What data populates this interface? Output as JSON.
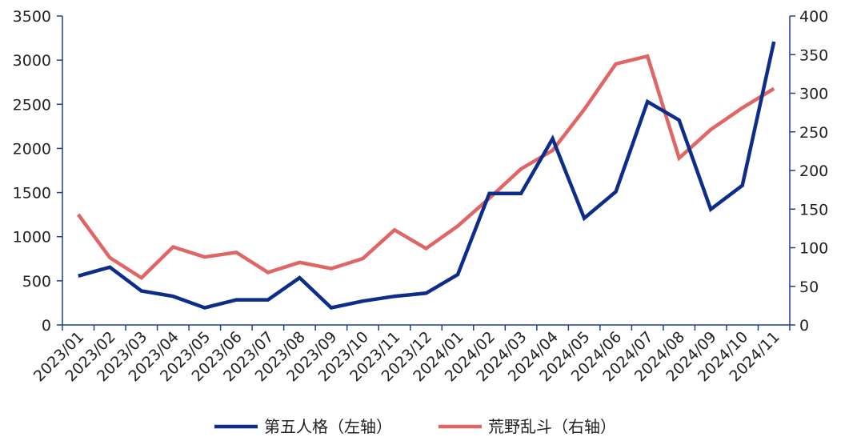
{
  "chart_data": {
    "type": "line",
    "categories": [
      "2023/01",
      "2023/02",
      "2023/03",
      "2023/04",
      "2023/05",
      "2023/06",
      "2023/07",
      "2023/08",
      "2023/09",
      "2023/10",
      "2023/11",
      "2023/12",
      "2024/01",
      "2024/02",
      "2024/03",
      "2024/04",
      "2024/05",
      "2024/06",
      "2024/07",
      "2024/08",
      "2024/09",
      "2024/10",
      "2024/11"
    ],
    "series": [
      {
        "name": "第五人格（左轴）",
        "axis": "left",
        "color": "#0d2d8a",
        "values": [
          555,
          655,
          385,
          325,
          195,
          285,
          285,
          535,
          195,
          270,
          325,
          360,
          570,
          1490,
          1490,
          2110,
          1210,
          1510,
          2530,
          2320,
          1310,
          1580,
          3210
        ]
      },
      {
        "name": "荒野乱斗（右轴）",
        "axis": "right",
        "color": "#e06666",
        "values": [
          143,
          87,
          61,
          101,
          88,
          94,
          68,
          81,
          73,
          86,
          123,
          99,
          128,
          164,
          202,
          226,
          279,
          338,
          348,
          216,
          253,
          281,
          306
        ]
      }
    ],
    "y_left": {
      "min": 0,
      "max": 3500,
      "ticks": [
        "0",
        "500",
        "1000",
        "1500",
        "2000",
        "2500",
        "3000",
        "3500"
      ]
    },
    "y_right": {
      "min": 0,
      "max": 400,
      "ticks": [
        "0",
        "50",
        "100",
        "150",
        "200",
        "250",
        "300",
        "350",
        "400"
      ]
    },
    "grid": false,
    "legend_position": "bottom"
  }
}
